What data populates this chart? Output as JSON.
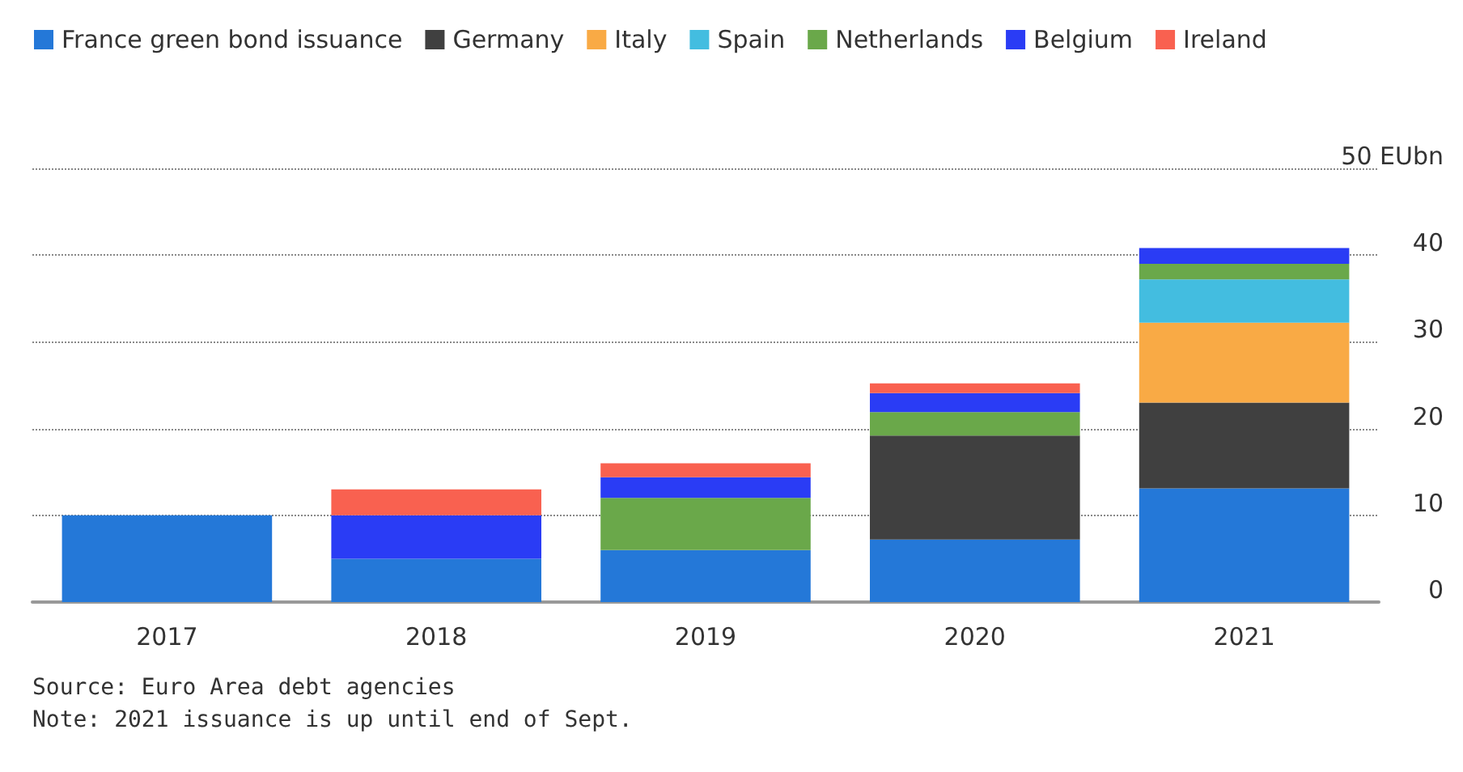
{
  "chart_data": {
    "type": "bar",
    "stacked": true,
    "categories": [
      "2017",
      "2018",
      "2019",
      "2020",
      "2021"
    ],
    "series": [
      {
        "name": "France green bond issuance",
        "color": "#2478d8",
        "values": [
          10,
          5,
          6,
          7.2,
          13.1
        ]
      },
      {
        "name": "Germany",
        "color": "#404040",
        "values": [
          null,
          null,
          null,
          12,
          9.9
        ]
      },
      {
        "name": "Italy",
        "color": "#f9aa45",
        "values": [
          null,
          null,
          null,
          null,
          9.2
        ]
      },
      {
        "name": "Spain",
        "color": "#43bde0",
        "values": [
          null,
          null,
          null,
          null,
          5
        ]
      },
      {
        "name": "Netherlands",
        "color": "#6aa84a",
        "values": [
          null,
          null,
          6,
          2.7,
          1.8
        ]
      },
      {
        "name": "Belgium",
        "color": "#2a3cf5",
        "values": [
          null,
          5,
          2.4,
          2.2,
          1.8
        ]
      },
      {
        "name": "Ireland",
        "color": "#f96150",
        "values": [
          null,
          3,
          1.6,
          1.1,
          null
        ]
      }
    ],
    "ylim": [
      0,
      50
    ],
    "yticks": [
      0,
      10,
      20,
      30,
      40,
      {
        "value": 50,
        "label": "50 EUbn"
      }
    ],
    "grid": "y",
    "legend": "top left",
    "annotations": [
      "Source: Euro Area debt agencies",
      "Note: 2021 issuance is up until end of Sept."
    ]
  }
}
